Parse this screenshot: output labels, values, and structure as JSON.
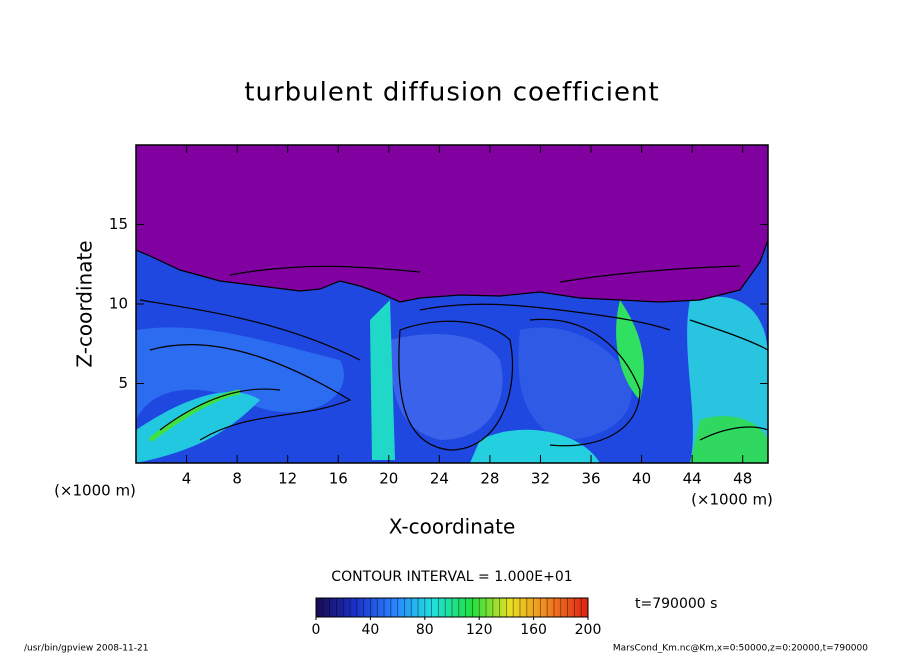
{
  "chart_data": {
    "type": "contour",
    "title": "turbulent diffusion coefficient",
    "x_label": "X-coordinate",
    "y_label": "Z-coordinate",
    "x_unit_label": "(×1000 m)",
    "y_unit_label": "(×1000 m)",
    "xlim": [
      0,
      50
    ],
    "xticks": [
      4,
      8,
      12,
      16,
      20,
      24,
      28,
      32,
      36,
      40,
      44,
      48
    ],
    "ylim": [
      0,
      20
    ],
    "yticks": [
      5,
      10,
      15
    ],
    "contour_interval": "CONTOUR INTERVAL = 1.000E+01",
    "time_label": "t=790000 s",
    "colorbar": {
      "lim": [
        0,
        200
      ],
      "ticks": [
        0,
        40,
        80,
        120,
        160,
        200
      ],
      "colors": [
        "#1a0a50",
        "#1a30c8",
        "#2a80ff",
        "#20e0e0",
        "#20e040",
        "#e8e020",
        "#f08020",
        "#e02010"
      ]
    },
    "footer_left": "/usr/bin/gpview  2008-11-21",
    "footer_right": "MarsCond_Km.nc@Km,x=0:50000,z=0:20000,t=790000"
  }
}
